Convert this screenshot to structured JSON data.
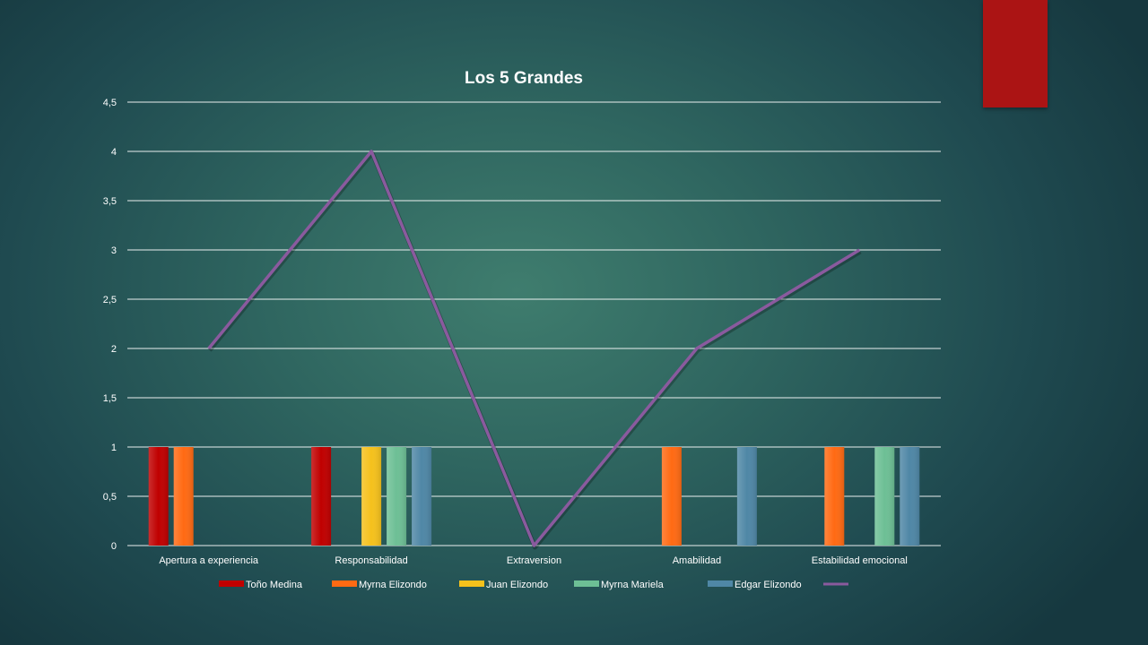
{
  "chart_data": {
    "type": "bar",
    "title": "Los 5 Grandes",
    "categories": [
      "Apertura a experiencia",
      "Responsabilidad",
      "Extraversion",
      "Amabilidad",
      "Estabilidad emocional"
    ],
    "ylim": [
      0,
      4.5
    ],
    "y_ticks": [
      "0",
      "0,5",
      "1",
      "1,5",
      "2",
      "2,5",
      "3",
      "3,5",
      "4",
      "4,5"
    ],
    "grid": true,
    "legend_position": "bottom",
    "series": [
      {
        "name": "Toño Medina",
        "type": "bar",
        "color": "#c00000",
        "values": [
          1,
          1,
          0,
          0,
          0
        ]
      },
      {
        "name": "Myrna Elizondo",
        "type": "bar",
        "color": "#ff6a13",
        "values": [
          1,
          0,
          0,
          1,
          1
        ]
      },
      {
        "name": "Juan Elizondo",
        "type": "bar",
        "color": "#f5c11c",
        "values": [
          0,
          1,
          0,
          0,
          0
        ]
      },
      {
        "name": "Myrna Mariela",
        "type": "bar",
        "color": "#6dbf95",
        "values": [
          0,
          1,
          0,
          0,
          1
        ]
      },
      {
        "name": "Edgar Elizondo",
        "type": "bar",
        "color": "#4f87a6",
        "values": [
          0,
          1,
          0,
          1,
          1
        ]
      },
      {
        "name": "",
        "type": "line",
        "color": "#8a5a9e",
        "values": [
          2,
          4,
          0,
          2,
          3
        ]
      }
    ]
  }
}
